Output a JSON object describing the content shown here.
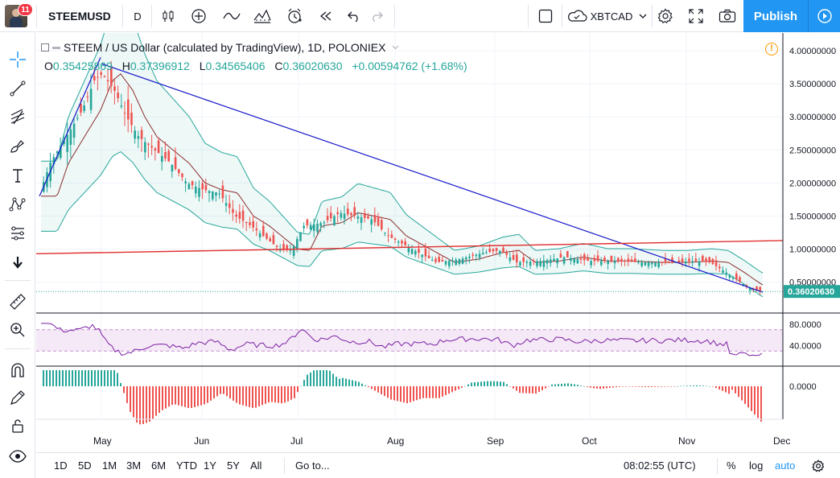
{
  "header": {
    "notification_count": "11",
    "symbol": "STEEMUSD",
    "interval": "D",
    "compare_symbol": "XBTCAD",
    "publish_label": "Publish"
  },
  "chart": {
    "legend_title": "STEEM / US Dollar (calculated by TradingView), 1D, POLONIEX",
    "ohlc": {
      "o_label": "O",
      "o": "0.35425869",
      "h_label": "H",
      "h": "0.37396912",
      "l_label": "L",
      "l": "0.34565406",
      "c_label": "C",
      "c": "0.36020630",
      "change": "+0.00594762 (+1.68%)"
    },
    "alert_symbol": "!",
    "last_price": "0.36020630",
    "colors": {
      "up": "#26a69a",
      "down": "#ef5350",
      "band": "#26a69a",
      "ma": "#8b2e2e",
      "trend_blue": "#1515c8",
      "trend_red": "#e03030",
      "rsi": "#7b1fa2",
      "accent": "#2196f3"
    }
  },
  "price_axis": {
    "labels": [
      "4.00000000",
      "3.50000000",
      "3.00000000",
      "2.50000000",
      "2.00000000",
      "1.50000000",
      "1.00000000",
      "0.50000000"
    ]
  },
  "rsi_axis": {
    "labels": [
      "80.0000",
      "40.0000"
    ]
  },
  "macd_axis": {
    "labels": [
      "0.0000"
    ]
  },
  "time_axis": {
    "labels": [
      "May",
      "Jun",
      "Jul",
      "Aug",
      "Sep",
      "Oct",
      "Nov",
      "Dec"
    ]
  },
  "bottombar": {
    "ranges": [
      "1D",
      "5D",
      "1M",
      "3M",
      "6M",
      "YTD",
      "1Y",
      "5Y",
      "All"
    ],
    "goto_label": "Go to...",
    "clock": "08:02:55 (UTC)",
    "percent": "%",
    "log": "log",
    "auto": "auto"
  },
  "chart_data": {
    "type": "candlestick",
    "title": "STEEM / US Dollar (calculated by TradingView), 1D, POLONIEX",
    "x_range": [
      "Apr",
      "Dec"
    ],
    "ylim": [
      0.3,
      4.0
    ],
    "x_ticks": [
      "May",
      "Jun",
      "Jul",
      "Aug",
      "Sep",
      "Oct",
      "Nov",
      "Dec"
    ],
    "y_ticks": [
      4.0,
      3.5,
      3.0,
      2.5,
      2.0,
      1.5,
      1.0,
      0.5
    ],
    "series": [
      {
        "x": [
          "Apr 10",
          "Apr 20",
          "Apr 30",
          "May 5",
          "May 10",
          "May 20",
          "Jun 1",
          "Jun 10",
          "Jun 20",
          "Jul 1",
          "Jul 10",
          "Jul 20",
          "Aug 1",
          "Aug 10",
          "Aug 20",
          "Sep 1",
          "Sep 10",
          "Sep 20",
          "Oct 1",
          "Oct 10",
          "Oct 20",
          "Nov 1",
          "Nov 10",
          "Nov 20",
          "Nov 26"
        ],
        "close": [
          1.9,
          2.6,
          3.4,
          3.6,
          3.3,
          2.6,
          2.0,
          1.85,
          1.4,
          1.0,
          1.45,
          1.55,
          1.35,
          0.95,
          0.85,
          0.95,
          0.78,
          0.9,
          0.85,
          0.83,
          0.82,
          0.81,
          0.82,
          0.6,
          0.36
        ]
      }
    ],
    "last_price": 0.3602063,
    "rsi": {
      "ylim": [
        0,
        100
      ],
      "levels": [
        70,
        30
      ],
      "last": 24
    },
    "macd_histogram": {
      "zero": 0.0
    }
  }
}
